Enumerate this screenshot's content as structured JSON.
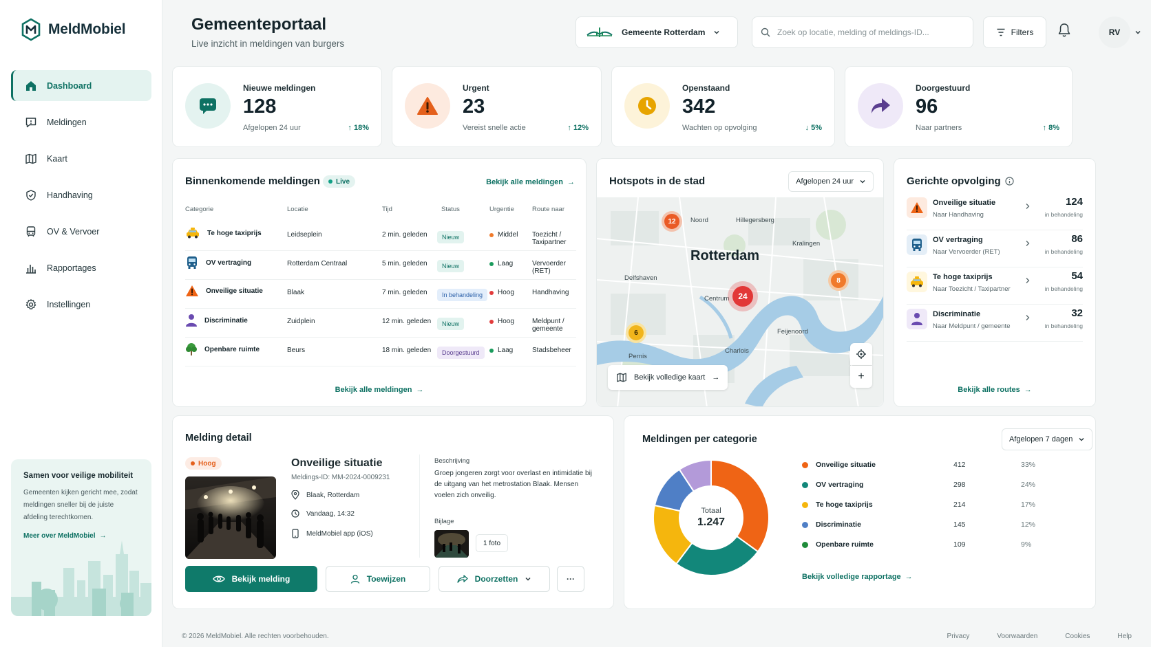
{
  "app": {
    "name": "MeldMobiel"
  },
  "nav": {
    "items": [
      {
        "label": "Dashboard",
        "icon": "home-icon",
        "active": true
      },
      {
        "label": "Meldingen",
        "icon": "message-icon"
      },
      {
        "label": "Kaart",
        "icon": "map-icon"
      },
      {
        "label": "Handhaving",
        "icon": "shield-icon"
      },
      {
        "label": "OV & Vervoer",
        "icon": "bus-icon"
      },
      {
        "label": "Rapportages",
        "icon": "bar-chart-icon"
      },
      {
        "label": "Instellingen",
        "icon": "gear-icon"
      }
    ]
  },
  "promo": {
    "title": "Samen voor veilige mobiliteit",
    "text": "Gemeenten kijken gericht mee, zodat meldingen sneller bij de juiste afdeling terechtkomen.",
    "link": "Meer over MeldMobiel"
  },
  "header": {
    "title": "Gemeenteportaal",
    "subtitle": "Live inzicht in meldingen van burgers",
    "municipality": "Gemeente Rotterdam",
    "search_placeholder": "Zoek op locatie, melding of meldings-ID...",
    "filters_label": "Filters",
    "user_initials": "RV"
  },
  "stats": [
    {
      "label": "Nieuwe meldingen",
      "value": "128",
      "sub": "Afgelopen 24 uur",
      "trend": "18%",
      "trend_dir": "up",
      "color": "#0e7163",
      "bg": "#e4f3f0"
    },
    {
      "label": "Urgent",
      "value": "23",
      "sub": "Vereist snelle actie",
      "trend": "12%",
      "trend_dir": "up",
      "color": "#e4601c",
      "bg": "#fdeadf"
    },
    {
      "label": "Openstaand",
      "value": "342",
      "sub": "Wachten op opvolging",
      "trend": "5%",
      "trend_dir": "down",
      "color": "#e7a400",
      "bg": "#fdf3d9"
    },
    {
      "label": "Doorgestuurd",
      "value": "96",
      "sub": "Naar partners",
      "trend": "8%",
      "trend_dir": "up",
      "color": "#5a3e8f",
      "bg": "#efe9f8"
    }
  ],
  "incoming": {
    "title": "Binnenkomende meldingen",
    "live_label": "Live",
    "view_all": "Bekijk alle meldingen",
    "columns": [
      "Categorie",
      "Locatie",
      "Tijd",
      "Status",
      "Urgentie",
      "Route naar"
    ],
    "rows": [
      {
        "category": "Te hoge taxiprijs",
        "icon": "taxi-icon",
        "location": "Leidseplein",
        "time": "2 min. geleden",
        "status": "Nieuw",
        "status_type": "new",
        "urgency": "Middel",
        "urgency_color": "#f07a2b",
        "route": "Toezicht / Taxipartner"
      },
      {
        "category": "OV vertraging",
        "icon": "bus-icon",
        "location": "Rotterdam Centraal",
        "time": "5 min. geleden",
        "status": "Nieuw",
        "status_type": "new",
        "urgency": "Laag",
        "urgency_color": "#1a9b5c",
        "route": "Vervoerder (RET)"
      },
      {
        "category": "Onveilige situatie",
        "icon": "warning-icon",
        "location": "Blaak",
        "time": "7 min. geleden",
        "status": "In behandeling",
        "status_type": "prog",
        "urgency": "Hoog",
        "urgency_color": "#e23b3b",
        "route": "Handhaving"
      },
      {
        "category": "Discriminatie",
        "icon": "person-icon",
        "location": "Zuidplein",
        "time": "12 min. geleden",
        "status": "Nieuw",
        "status_type": "new",
        "urgency": "Hoog",
        "urgency_color": "#e23b3b",
        "route": "Meldpunt / gemeente"
      },
      {
        "category": "Openbare ruimte",
        "icon": "tree-icon",
        "location": "Beurs",
        "time": "18 min. geleden",
        "status": "Doorgestuurd",
        "status_type": "fwd",
        "urgency": "Laag",
        "urgency_color": "#1a9b5c",
        "route": "Stadsbeheer"
      }
    ]
  },
  "hotspots": {
    "title": "Hotspots in de stad",
    "period": "Afgelopen 24 uur",
    "city": "Rotterdam",
    "districts": [
      "Noord",
      "Hillegersberg",
      "Kralingen",
      "Delfshaven",
      "Centrum",
      "Feijenoord",
      "Charlois",
      "Pernis"
    ],
    "markers": [
      "12",
      "24",
      "8",
      "6"
    ],
    "view_map": "Bekijk volledige kaart",
    "zoom_in": "+"
  },
  "followup": {
    "title": "Gerichte opvolging",
    "view_all": "Bekijk alle routes",
    "items": [
      {
        "name": "Onveilige situatie",
        "target": "Naar Handhaving",
        "count": "124",
        "count_label": "in behandeling",
        "icon": "warning-icon"
      },
      {
        "name": "OV vertraging",
        "target": "Naar Vervoerder (RET)",
        "count": "86",
        "count_label": "in behandeling",
        "icon": "bus-icon"
      },
      {
        "name": "Te hoge taxiprijs",
        "target": "Naar Toezicht / Taxipartner",
        "count": "54",
        "count_label": "in behandeling",
        "icon": "taxi-icon"
      },
      {
        "name": "Discriminatie",
        "target": "Naar Meldpunt / gemeente",
        "count": "32",
        "count_label": "in behandeling",
        "icon": "person-icon"
      }
    ]
  },
  "detail": {
    "title": "Melding detail",
    "urgency": "Hoog",
    "name": "Onveilige situatie",
    "id": "Meldings-ID: MM-2024-0009231",
    "location": "Blaak, Rotterdam",
    "time": "Vandaag, 14:32",
    "source": "MeldMobiel app (iOS)",
    "desc_label": "Beschrijving",
    "description": "Groep jongeren zorgt voor overlast en intimidatie bij de uitgang van het metrostation Blaak. Mensen voelen zich onveilig.",
    "attachment_label": "Bijlage",
    "attachment_count": "1 foto",
    "buttons": {
      "view": "Bekijk melding",
      "assign": "Toewijzen",
      "forward": "Doorzetten",
      "more": "···"
    }
  },
  "categories": {
    "title": "Meldingen per categorie",
    "period": "Afgelopen 7 dagen",
    "total_label": "Totaal",
    "total": "1.247",
    "view_report": "Bekijk volledige rapportage"
  },
  "chart_data": {
    "type": "pie",
    "categories": [
      "Onveilige situatie",
      "OV vertraging",
      "Te hoge taxiprijs",
      "Discriminatie",
      "Openbare ruimte"
    ],
    "values": [
      412,
      298,
      214,
      145,
      109
    ],
    "percentages": [
      "33%",
      "24%",
      "17%",
      "12%",
      "9%"
    ],
    "colors": [
      "#ef6415",
      "#12877a",
      "#f5b60d",
      "#4f7fc6",
      "#b39ad9"
    ],
    "legend_colors": [
      "#ef6415",
      "#12877a",
      "#f5b60d",
      "#4f7fc6",
      "#1f8c3a"
    ],
    "legend": "right"
  },
  "footer": {
    "copyright": "© 2026 MeldMobiel. Alle rechten voorbehouden.",
    "links": [
      "Privacy",
      "Voorwaarden",
      "Cookies",
      "Help"
    ]
  }
}
